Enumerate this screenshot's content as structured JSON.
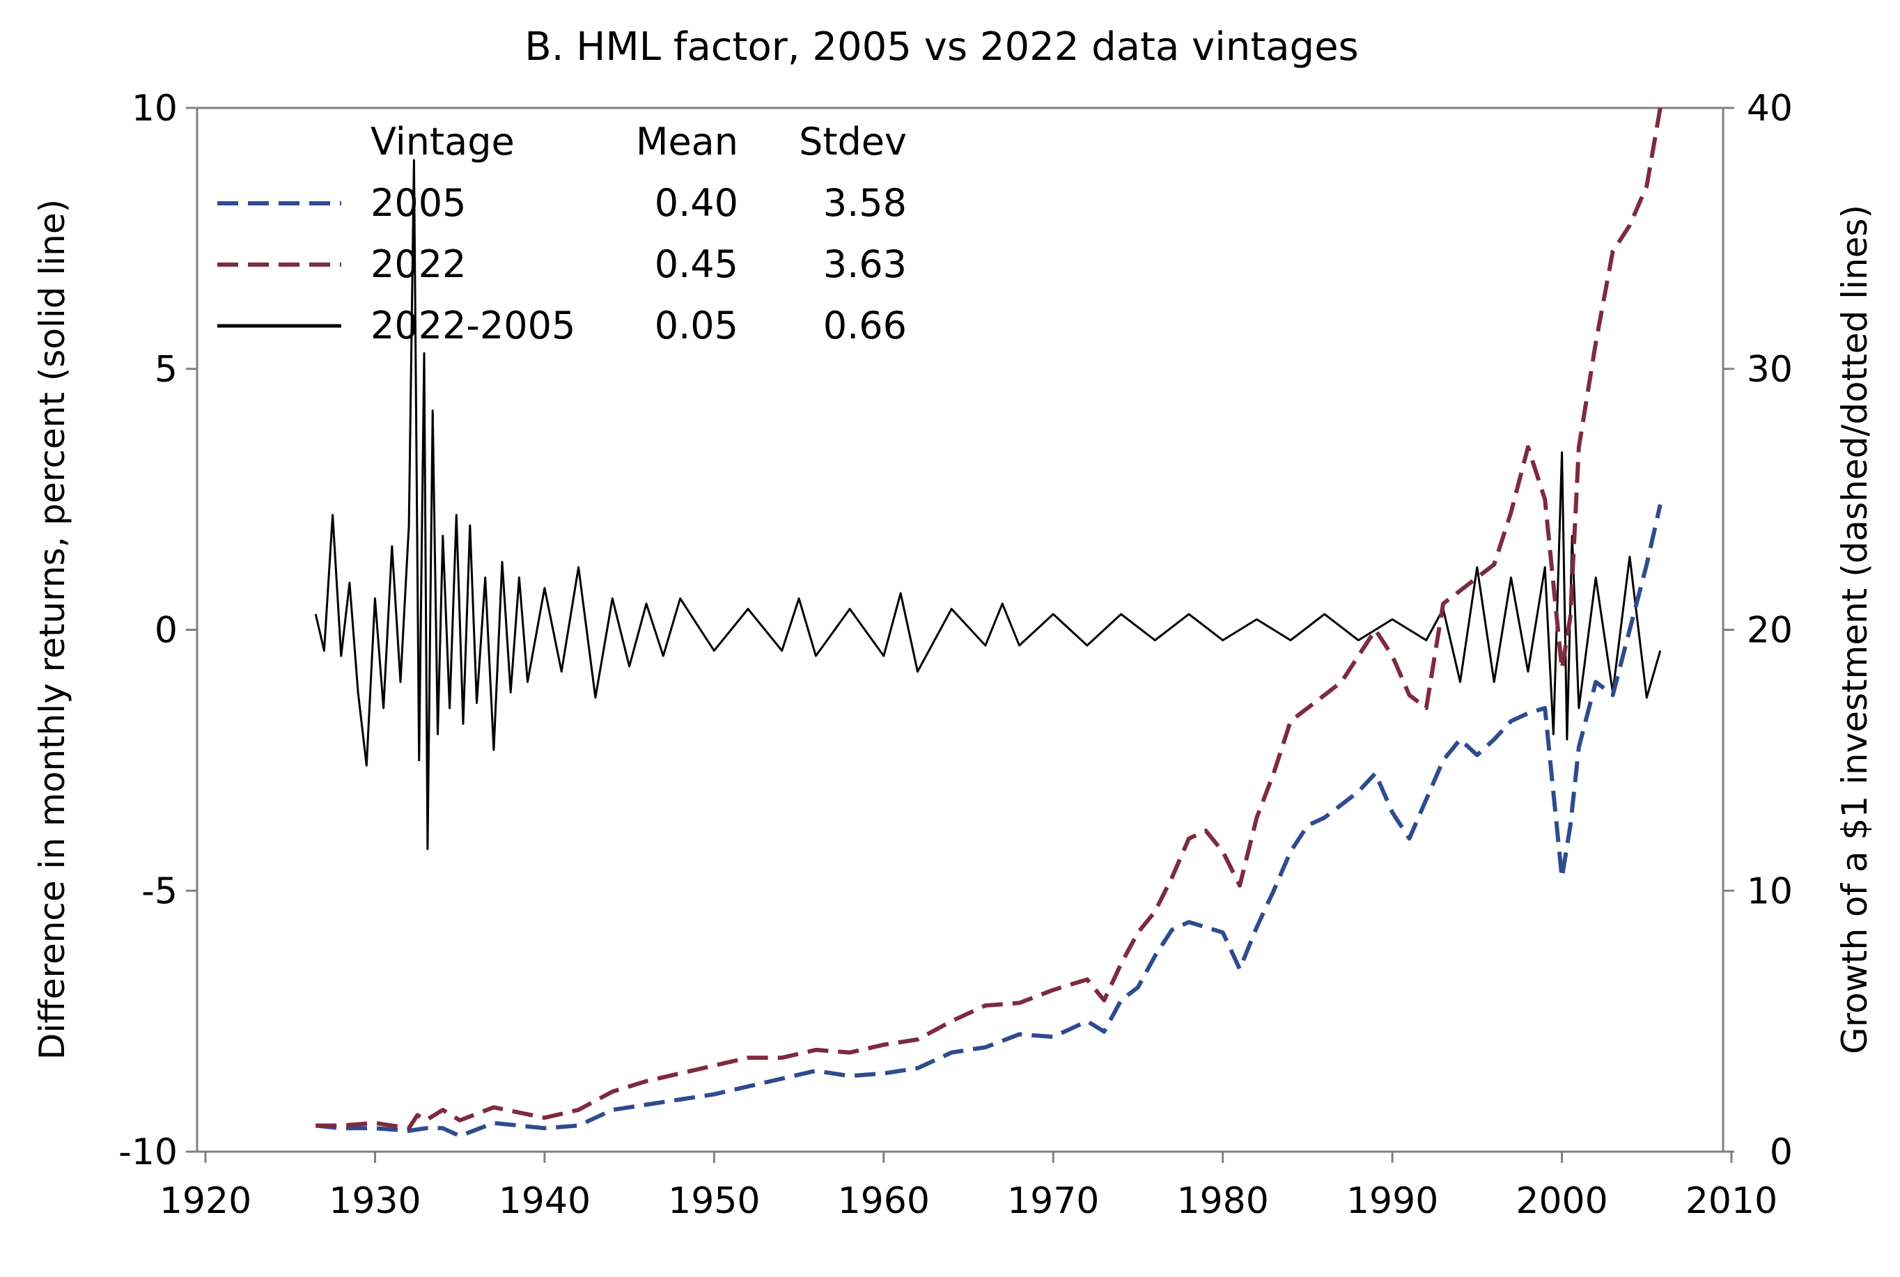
{
  "chart_data": {
    "type": "line",
    "title": "B. HML factor, 2005 vs 2022 data vintages",
    "xlabel": "",
    "ylabel_left": "Difference in monthly returns, percent (solid line)",
    "ylabel_right": "Growth of a $1 investment (dashed/dotted lines)",
    "xlim": [
      1920,
      2010
    ],
    "ylim_left": [
      -10,
      10
    ],
    "ylim_right": [
      0,
      40
    ],
    "x_ticks": [
      "1920",
      "1930",
      "1940",
      "1950",
      "1960",
      "1970",
      "1980",
      "1990",
      "2000",
      "2010"
    ],
    "y_left_ticks": [
      "-10",
      "-5",
      "0",
      "5",
      "10"
    ],
    "y_right_ticks": [
      "0",
      "10",
      "20",
      "30",
      "40"
    ],
    "grid": false,
    "legend": {
      "placement": "top-left",
      "headers": [
        "Vintage",
        "Mean",
        "Stdev"
      ],
      "rows": [
        {
          "name": "2005",
          "mean": "0.40",
          "stdev": "3.58",
          "color": "#2f4b8f",
          "style": "dashed"
        },
        {
          "name": "2022",
          "mean": "0.45",
          "stdev": "3.63",
          "color": "#7e2a3f",
          "style": "dashed"
        },
        {
          "name": "2022-2005",
          "mean": "0.05",
          "stdev": "0.66",
          "color": "#000000",
          "style": "solid"
        }
      ]
    },
    "series": [
      {
        "name": "2005",
        "axis": "right",
        "color": "#2f4b8f",
        "style": "dashed",
        "x": [
          1926.5,
          1928,
          1930,
          1932,
          1933,
          1934,
          1935,
          1937,
          1940,
          1942,
          1944,
          1946,
          1948,
          1950,
          1952,
          1954,
          1956,
          1958,
          1960,
          1962,
          1964,
          1966,
          1968,
          1970,
          1972,
          1973,
          1974,
          1975,
          1976,
          1977,
          1978,
          1979,
          1980,
          1981,
          1982,
          1983,
          1984,
          1985,
          1986,
          1987,
          1988,
          1989,
          1990,
          1991,
          1992,
          1993,
          1994,
          1995,
          1996,
          1997,
          1998,
          1999,
          2000,
          2000.5,
          2001,
          2002,
          2003,
          2004,
          2005,
          2005.8
        ],
        "y": [
          1.0,
          0.9,
          0.9,
          0.8,
          0.9,
          0.9,
          0.6,
          1.1,
          0.9,
          1.0,
          1.6,
          1.8,
          2.0,
          2.2,
          2.5,
          2.8,
          3.1,
          2.9,
          3.0,
          3.2,
          3.8,
          4.0,
          4.5,
          4.4,
          5.0,
          4.6,
          5.8,
          6.3,
          7.5,
          8.5,
          8.8,
          8.6,
          8.4,
          7.0,
          8.6,
          10.0,
          11.5,
          12.5,
          12.8,
          13.3,
          13.8,
          14.5,
          13.0,
          12.0,
          13.5,
          15.0,
          15.8,
          15.2,
          15.8,
          16.5,
          16.8,
          17.0,
          10.5,
          12.5,
          15.5,
          18.0,
          17.5,
          20.0,
          22.5,
          24.8
        ]
      },
      {
        "name": "2022",
        "axis": "right",
        "color": "#7e2a3f",
        "style": "dashed",
        "x": [
          1926.5,
          1928,
          1930,
          1932,
          1932.5,
          1933,
          1934,
          1935,
          1937,
          1940,
          1942,
          1944,
          1946,
          1948,
          1950,
          1952,
          1954,
          1956,
          1958,
          1960,
          1962,
          1964,
          1966,
          1968,
          1970,
          1972,
          1973,
          1974,
          1975,
          1976,
          1977,
          1978,
          1979,
          1980,
          1981,
          1982,
          1983,
          1984,
          1985,
          1986,
          1987,
          1988,
          1989,
          1990,
          1991,
          1992,
          1993,
          1994,
          1995,
          1996,
          1997,
          1998,
          1999,
          2000,
          2000.5,
          2001,
          2002,
          2003,
          2004,
          2005,
          2005.8
        ],
        "y": [
          1.0,
          1.0,
          1.1,
          0.9,
          1.4,
          1.2,
          1.6,
          1.2,
          1.7,
          1.3,
          1.6,
          2.3,
          2.7,
          3.0,
          3.3,
          3.6,
          3.6,
          3.9,
          3.8,
          4.1,
          4.3,
          5.0,
          5.6,
          5.7,
          6.2,
          6.6,
          5.8,
          7.2,
          8.4,
          9.2,
          10.5,
          12.0,
          12.3,
          11.5,
          10.2,
          12.8,
          14.5,
          16.5,
          17.0,
          17.5,
          18.0,
          19.0,
          20.0,
          19.0,
          17.5,
          17.0,
          21.0,
          21.5,
          22.0,
          22.5,
          24.5,
          27.0,
          25.0,
          18.5,
          20.5,
          27.0,
          31.0,
          34.5,
          35.5,
          37.0,
          40.0
        ]
      },
      {
        "name": "2022-2005",
        "axis": "left",
        "color": "#000000",
        "style": "solid",
        "x": [
          1926.5,
          1927,
          1927.5,
          1928,
          1928.5,
          1929,
          1929.5,
          1930,
          1930.5,
          1931,
          1931.5,
          1932,
          1932.3,
          1932.6,
          1932.9,
          1933.1,
          1933.4,
          1933.7,
          1934,
          1934.4,
          1934.8,
          1935.2,
          1935.6,
          1936,
          1936.5,
          1937,
          1937.5,
          1938,
          1938.5,
          1939,
          1940,
          1941,
          1942,
          1943,
          1944,
          1945,
          1946,
          1947,
          1948,
          1950,
          1952,
          1954,
          1955,
          1956,
          1958,
          1960,
          1961,
          1962,
          1964,
          1966,
          1967,
          1968,
          1970,
          1972,
          1974,
          1976,
          1978,
          1980,
          1982,
          1984,
          1986,
          1988,
          1990,
          1992,
          1993,
          1994,
          1995,
          1996,
          1997,
          1998,
          1999,
          1999.5,
          2000,
          2000.3,
          2000.6,
          2001,
          2002,
          2003,
          2004,
          2005,
          2005.8
        ],
        "y": [
          0.3,
          -0.4,
          2.2,
          -0.5,
          0.9,
          -1.2,
          -2.6,
          0.6,
          -1.5,
          1.6,
          -1.0,
          2.0,
          9.0,
          -2.5,
          5.3,
          -4.2,
          4.2,
          -2.0,
          1.8,
          -1.5,
          2.2,
          -1.8,
          2.0,
          -1.4,
          1.0,
          -2.3,
          1.3,
          -1.2,
          1.0,
          -1.0,
          0.8,
          -0.8,
          1.2,
          -1.3,
          0.6,
          -0.7,
          0.5,
          -0.5,
          0.6,
          -0.4,
          0.4,
          -0.4,
          0.6,
          -0.5,
          0.4,
          -0.5,
          0.7,
          -0.8,
          0.4,
          -0.3,
          0.5,
          -0.3,
          0.3,
          -0.3,
          0.3,
          -0.2,
          0.3,
          -0.2,
          0.2,
          -0.2,
          0.3,
          -0.2,
          0.2,
          -0.2,
          0.4,
          -1.0,
          1.2,
          -1.0,
          1.0,
          -0.8,
          1.2,
          -2.0,
          3.4,
          -2.1,
          1.8,
          -1.5,
          1.0,
          -1.2,
          1.4,
          -1.3,
          -0.4
        ]
      }
    ]
  }
}
